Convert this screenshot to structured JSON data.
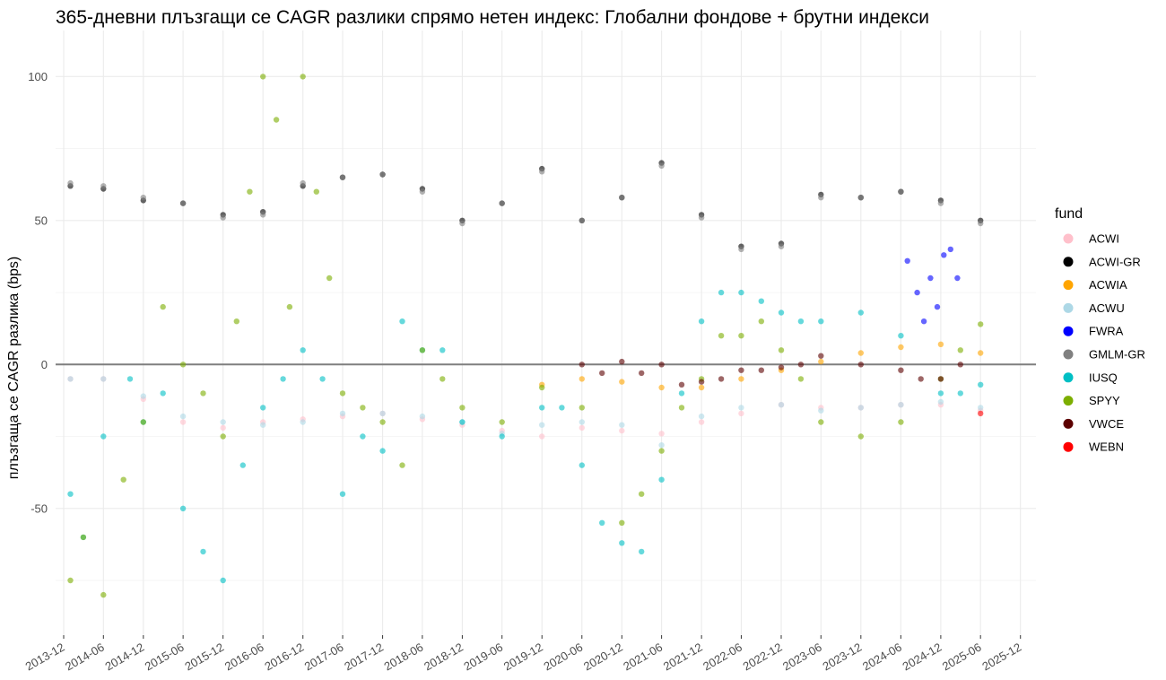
{
  "chart_data": {
    "type": "scatter",
    "title": "365-дневни плъзгащи се CAGR разлики спрямо нетен индекс: Глобални фондове + брутни индекси",
    "xlabel": "",
    "ylabel": "плъзгаща се CAGR разлика (bps)",
    "x_ticks": [
      "2013-12",
      "2014-06",
      "2014-12",
      "2015-06",
      "2015-12",
      "2016-06",
      "2016-12",
      "2017-06",
      "2017-12",
      "2018-06",
      "2018-12",
      "2019-06",
      "2019-12",
      "2020-06",
      "2020-12",
      "2021-06",
      "2021-12",
      "2022-06",
      "2022-12",
      "2023-06",
      "2023-12",
      "2024-06",
      "2024-12",
      "2025-06",
      "2025-12"
    ],
    "y_ticks": [
      -50,
      0,
      50,
      100
    ],
    "xlim": [
      "2013-10-25",
      "2026-02-10"
    ],
    "ylim": [
      -94,
      116
    ],
    "reference_line": 0,
    "grid": true,
    "legend": {
      "title": "fund",
      "position": "right"
    },
    "series": [
      {
        "name": "ACWI",
        "color": "#FFC0CB",
        "points": [
          [
            "2014-01-01",
            -5
          ],
          [
            "2014-06-01",
            -5
          ],
          [
            "2014-12-01",
            -12
          ],
          [
            "2015-06-01",
            -20
          ],
          [
            "2015-12-01",
            -22
          ],
          [
            "2016-06-01",
            -20
          ],
          [
            "2016-12-01",
            -19
          ],
          [
            "2017-06-01",
            -18
          ],
          [
            "2017-12-01",
            -17
          ],
          [
            "2018-06-01",
            -19
          ],
          [
            "2018-12-01",
            -21
          ],
          [
            "2019-06-01",
            -23
          ],
          [
            "2019-12-01",
            -25
          ],
          [
            "2020-06-01",
            -22
          ],
          [
            "2020-12-01",
            -23
          ],
          [
            "2021-06-01",
            -24
          ],
          [
            "2021-12-01",
            -20
          ],
          [
            "2022-06-01",
            -17
          ],
          [
            "2022-12-01",
            -14
          ],
          [
            "2023-06-01",
            -15
          ],
          [
            "2023-12-01",
            -15
          ],
          [
            "2024-06-01",
            -14
          ],
          [
            "2024-12-01",
            -14
          ],
          [
            "2025-06-01",
            -16
          ]
        ]
      },
      {
        "name": "ACWI-GR",
        "color": "#000000",
        "points": [
          [
            "2014-01-01",
            62
          ],
          [
            "2014-06-01",
            61
          ],
          [
            "2014-12-01",
            57
          ],
          [
            "2015-06-01",
            56
          ],
          [
            "2015-12-01",
            52
          ],
          [
            "2016-06-01",
            53
          ],
          [
            "2016-12-01",
            62
          ],
          [
            "2017-06-01",
            65
          ],
          [
            "2017-12-01",
            66
          ],
          [
            "2018-06-01",
            61
          ],
          [
            "2018-12-01",
            50
          ],
          [
            "2019-06-01",
            56
          ],
          [
            "2019-12-01",
            68
          ],
          [
            "2020-06-01",
            50
          ],
          [
            "2020-12-01",
            58
          ],
          [
            "2021-06-01",
            70
          ],
          [
            "2021-12-01",
            52
          ],
          [
            "2022-06-01",
            41
          ],
          [
            "2022-12-01",
            42
          ],
          [
            "2023-06-01",
            59
          ],
          [
            "2023-12-01",
            58
          ],
          [
            "2024-06-01",
            60
          ],
          [
            "2024-12-01",
            57
          ],
          [
            "2025-06-01",
            50
          ]
        ]
      },
      {
        "name": "ACWIA",
        "color": "#FFA500",
        "points": [
          [
            "2019-12-01",
            -7
          ],
          [
            "2020-06-01",
            -5
          ],
          [
            "2020-12-01",
            -6
          ],
          [
            "2021-06-01",
            -8
          ],
          [
            "2021-12-01",
            -8
          ],
          [
            "2022-06-01",
            -5
          ],
          [
            "2022-12-01",
            -2
          ],
          [
            "2023-06-01",
            1
          ],
          [
            "2023-12-01",
            4
          ],
          [
            "2024-06-01",
            6
          ],
          [
            "2024-12-01",
            7
          ],
          [
            "2025-06-01",
            4
          ]
        ]
      },
      {
        "name": "ACWU",
        "color": "#ADD8E6",
        "points": [
          [
            "2014-01-01",
            -5
          ],
          [
            "2014-06-01",
            -5
          ],
          [
            "2014-12-01",
            -11
          ],
          [
            "2015-06-01",
            -18
          ],
          [
            "2015-12-01",
            -20
          ],
          [
            "2016-06-01",
            -21
          ],
          [
            "2016-12-01",
            -20
          ],
          [
            "2017-06-01",
            -17
          ],
          [
            "2017-12-01",
            -17
          ],
          [
            "2018-06-01",
            -18
          ],
          [
            "2018-12-01",
            -20
          ],
          [
            "2019-06-01",
            -24
          ],
          [
            "2019-12-01",
            -21
          ],
          [
            "2020-06-01",
            -20
          ],
          [
            "2020-12-01",
            -21
          ],
          [
            "2021-06-01",
            -28
          ],
          [
            "2021-12-01",
            -18
          ],
          [
            "2022-06-01",
            -15
          ],
          [
            "2022-12-01",
            -14
          ],
          [
            "2023-06-01",
            -16
          ],
          [
            "2023-12-01",
            -15
          ],
          [
            "2024-06-01",
            -14
          ],
          [
            "2024-12-01",
            -13
          ],
          [
            "2025-06-01",
            -15
          ]
        ]
      },
      {
        "name": "FWRA",
        "color": "#0000FF",
        "points": [
          [
            "2024-07-01",
            36
          ],
          [
            "2024-08-15",
            25
          ],
          [
            "2024-09-15",
            15
          ],
          [
            "2024-10-15",
            30
          ],
          [
            "2024-11-15",
            20
          ],
          [
            "2024-12-15",
            38
          ],
          [
            "2025-01-15",
            40
          ],
          [
            "2025-02-15",
            30
          ]
        ]
      },
      {
        "name": "GMLM-GR",
        "color": "#808080",
        "points": [
          [
            "2014-01-01",
            63
          ],
          [
            "2014-06-01",
            62
          ],
          [
            "2014-12-01",
            58
          ],
          [
            "2015-06-01",
            56
          ],
          [
            "2015-12-01",
            51
          ],
          [
            "2016-06-01",
            52
          ],
          [
            "2016-12-01",
            63
          ],
          [
            "2017-06-01",
            65
          ],
          [
            "2017-12-01",
            66
          ],
          [
            "2018-06-01",
            60
          ],
          [
            "2018-12-01",
            49
          ],
          [
            "2019-06-01",
            56
          ],
          [
            "2019-12-01",
            67
          ],
          [
            "2020-06-01",
            50
          ],
          [
            "2020-12-01",
            58
          ],
          [
            "2021-06-01",
            69
          ],
          [
            "2021-12-01",
            51
          ],
          [
            "2022-06-01",
            40
          ],
          [
            "2022-12-01",
            41
          ],
          [
            "2023-06-01",
            58
          ],
          [
            "2023-12-01",
            58
          ],
          [
            "2024-06-01",
            60
          ],
          [
            "2024-12-01",
            56
          ],
          [
            "2025-06-01",
            49
          ]
        ]
      },
      {
        "name": "IUSQ",
        "color": "#00BFC4",
        "points": [
          [
            "2014-01-01",
            -45
          ],
          [
            "2014-03-01",
            -60
          ],
          [
            "2014-06-01",
            -25
          ],
          [
            "2014-10-01",
            -5
          ],
          [
            "2014-12-01",
            -20
          ],
          [
            "2015-03-01",
            -10
          ],
          [
            "2015-06-01",
            -50
          ],
          [
            "2015-09-01",
            -65
          ],
          [
            "2015-12-01",
            -75
          ],
          [
            "2016-03-01",
            -35
          ],
          [
            "2016-06-01",
            -15
          ],
          [
            "2016-09-01",
            -5
          ],
          [
            "2016-12-01",
            5
          ],
          [
            "2017-03-01",
            -5
          ],
          [
            "2017-06-01",
            -45
          ],
          [
            "2017-09-01",
            -25
          ],
          [
            "2017-12-01",
            -30
          ],
          [
            "2018-03-01",
            15
          ],
          [
            "2018-06-01",
            5
          ],
          [
            "2018-09-01",
            5
          ],
          [
            "2018-12-01",
            -20
          ],
          [
            "2019-06-01",
            -25
          ],
          [
            "2019-12-01",
            -15
          ],
          [
            "2020-03-01",
            -15
          ],
          [
            "2020-06-01",
            -35
          ],
          [
            "2020-09-01",
            -55
          ],
          [
            "2020-12-01",
            -62
          ],
          [
            "2021-03-01",
            -65
          ],
          [
            "2021-06-01",
            -40
          ],
          [
            "2021-09-01",
            -10
          ],
          [
            "2021-12-01",
            15
          ],
          [
            "2022-03-01",
            25
          ],
          [
            "2022-06-01",
            25
          ],
          [
            "2022-09-01",
            22
          ],
          [
            "2022-12-01",
            18
          ],
          [
            "2023-03-01",
            15
          ],
          [
            "2023-06-01",
            15
          ],
          [
            "2023-12-01",
            18
          ],
          [
            "2024-06-01",
            10
          ],
          [
            "2024-12-01",
            -10
          ],
          [
            "2025-03-01",
            -10
          ],
          [
            "2025-06-01",
            -7
          ]
        ]
      },
      {
        "name": "SPYY",
        "color": "#7CAE00",
        "points": [
          [
            "2014-01-01",
            -75
          ],
          [
            "2014-03-01",
            -60
          ],
          [
            "2014-06-01",
            -80
          ],
          [
            "2014-09-01",
            -40
          ],
          [
            "2014-12-01",
            -20
          ],
          [
            "2015-03-01",
            20
          ],
          [
            "2015-06-01",
            0
          ],
          [
            "2015-09-01",
            -10
          ],
          [
            "2015-12-01",
            -25
          ],
          [
            "2016-02-01",
            15
          ],
          [
            "2016-04-01",
            60
          ],
          [
            "2016-06-01",
            100
          ],
          [
            "2016-08-01",
            85
          ],
          [
            "2016-10-01",
            20
          ],
          [
            "2016-12-01",
            100
          ],
          [
            "2017-02-01",
            60
          ],
          [
            "2017-04-01",
            30
          ],
          [
            "2017-06-01",
            -10
          ],
          [
            "2017-09-01",
            -15
          ],
          [
            "2017-12-01",
            -20
          ],
          [
            "2018-03-01",
            -35
          ],
          [
            "2018-06-01",
            5
          ],
          [
            "2018-09-01",
            -5
          ],
          [
            "2018-12-01",
            -15
          ],
          [
            "2019-06-01",
            -20
          ],
          [
            "2019-12-01",
            -8
          ],
          [
            "2020-06-01",
            -15
          ],
          [
            "2020-12-01",
            -55
          ],
          [
            "2021-03-01",
            -45
          ],
          [
            "2021-06-01",
            -30
          ],
          [
            "2021-09-01",
            -15
          ],
          [
            "2021-12-01",
            -5
          ],
          [
            "2022-03-01",
            10
          ],
          [
            "2022-06-01",
            10
          ],
          [
            "2022-09-01",
            15
          ],
          [
            "2022-12-01",
            5
          ],
          [
            "2023-03-01",
            -5
          ],
          [
            "2023-06-01",
            -20
          ],
          [
            "2023-12-01",
            -25
          ],
          [
            "2024-06-01",
            -20
          ],
          [
            "2024-12-01",
            -5
          ],
          [
            "2025-03-01",
            5
          ],
          [
            "2025-06-01",
            14
          ]
        ]
      },
      {
        "name": "VWCE",
        "color": "#5C0000",
        "points": [
          [
            "2020-06-01",
            0
          ],
          [
            "2020-09-01",
            -3
          ],
          [
            "2020-12-01",
            1
          ],
          [
            "2021-03-01",
            -3
          ],
          [
            "2021-06-01",
            0
          ],
          [
            "2021-09-01",
            -7
          ],
          [
            "2021-12-01",
            -6
          ],
          [
            "2022-03-01",
            -5
          ],
          [
            "2022-06-01",
            -2
          ],
          [
            "2022-09-01",
            -2
          ],
          [
            "2022-12-01",
            -1
          ],
          [
            "2023-03-01",
            0
          ],
          [
            "2023-06-01",
            3
          ],
          [
            "2023-12-01",
            0
          ],
          [
            "2024-06-01",
            -2
          ],
          [
            "2024-09-01",
            -5
          ],
          [
            "2024-12-01",
            -5
          ],
          [
            "2025-03-01",
            0
          ]
        ]
      },
      {
        "name": "WEBN",
        "color": "#FF0000",
        "points": [
          [
            "2025-06-01",
            -17
          ]
        ]
      }
    ]
  }
}
